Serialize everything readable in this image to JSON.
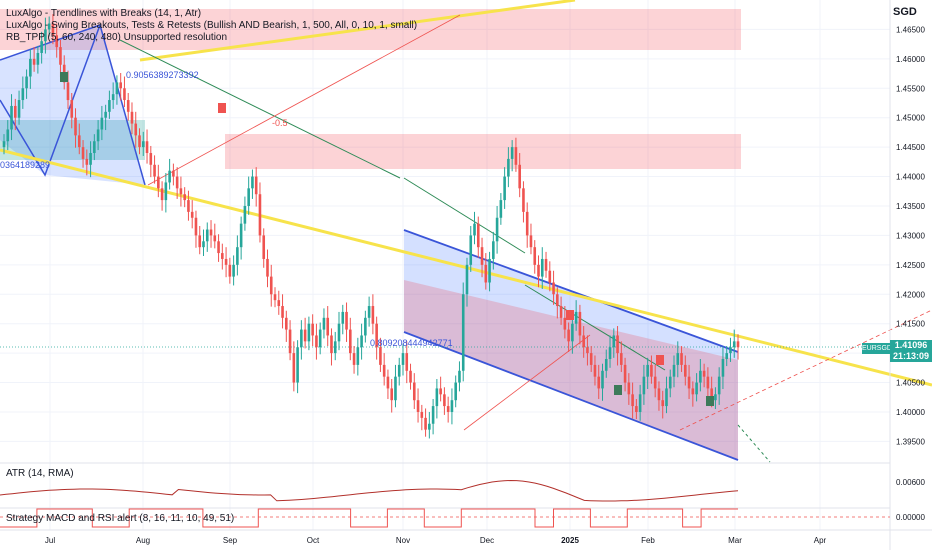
{
  "header": {
    "currency": "SGD",
    "indicator_lines": [
      "LuxAlgo - Trendlines with Breaks (14, 1, Atr)",
      "LuxAlgo - Swing Breakouts, Tests & Retests (Bullish AND Bearish, 1, 500, All, 0, 10, 1, small)",
      "RB_TPP (5, 60, 240, 480) Unsupported resolution"
    ]
  },
  "price_badge": {
    "symbol": "EURSGD",
    "price": "1.41096",
    "countdown": "21:13:09"
  },
  "panes": {
    "atr_label": "ATR (14, RMA)",
    "strategy_label": "Strategy MACD and RSI alert (8, 16, 11, 10, 49, 51)"
  },
  "annotations": {
    "fib_top": "0.9056389273392",
    "fib_left": "0364189289",
    "fib_mid": "0.809208444942771",
    "level_label": "-0.5"
  },
  "colors": {
    "up": "#26a69a",
    "down": "#ef5350",
    "yellow_trend": "#f7e34b",
    "channel_blue": "#3a55d8",
    "zone_red": "rgba(242,54,69,0.22)",
    "zone_green": "rgba(38,166,154,0.28)",
    "channel_fill_blue": "rgba(41,98,255,0.20)",
    "atr_line": "#b2302b",
    "strategy_line": "#ef5350"
  },
  "chart_data": {
    "type": "candlestick",
    "symbol": "EURSGD",
    "x_tick_labels": [
      "Jul",
      "Aug",
      "Sep",
      "Oct",
      "Nov",
      "Dec",
      "2025",
      "Feb",
      "Mar",
      "Apr"
    ],
    "y_tick_labels": [
      "1.46500",
      "1.46000",
      "1.45500",
      "1.45000",
      "1.44500",
      "1.44000",
      "1.43500",
      "1.43000",
      "1.42500",
      "1.42000",
      "1.41500",
      "1.41000",
      "1.40500",
      "1.40000",
      "1.39500"
    ],
    "ylim": [
      1.3915,
      1.47
    ],
    "close_series": [
      1.446,
      1.448,
      1.452,
      1.45,
      1.453,
      1.455,
      1.457,
      1.46,
      1.459,
      1.461,
      1.463,
      1.465,
      1.466,
      1.464,
      1.462,
      1.459,
      1.456,
      1.453,
      1.45,
      1.447,
      1.445,
      1.443,
      1.442,
      1.444,
      1.446,
      1.448,
      1.45,
      1.451,
      1.453,
      1.454,
      1.456,
      1.455,
      1.453,
      1.451,
      1.449,
      1.447,
      1.445,
      1.446,
      1.444,
      1.442,
      1.44,
      1.438,
      1.436,
      1.439,
      1.441,
      1.44,
      1.438,
      1.437,
      1.436,
      1.434,
      1.433,
      1.43,
      1.428,
      1.429,
      1.431,
      1.43,
      1.429,
      1.427,
      1.426,
      1.425,
      1.423,
      1.425,
      1.428,
      1.432,
      1.435,
      1.438,
      1.44,
      1.437,
      1.43,
      1.426,
      1.423,
      1.42,
      1.419,
      1.418,
      1.416,
      1.414,
      1.41,
      1.405,
      1.411,
      1.414,
      1.412,
      1.415,
      1.413,
      1.411,
      1.414,
      1.416,
      1.413,
      1.41,
      1.412,
      1.415,
      1.417,
      1.414,
      1.41,
      1.408,
      1.411,
      1.413,
      1.416,
      1.418,
      1.415,
      1.411,
      1.408,
      1.406,
      1.404,
      1.402,
      1.406,
      1.408,
      1.41,
      1.407,
      1.405,
      1.402,
      1.4,
      1.399,
      1.397,
      1.398,
      1.401,
      1.404,
      1.403,
      1.401,
      1.4,
      1.402,
      1.405,
      1.407,
      1.42,
      1.425,
      1.43,
      1.432,
      1.428,
      1.425,
      1.422,
      1.426,
      1.429,
      1.433,
      1.436,
      1.44,
      1.443,
      1.445,
      1.442,
      1.438,
      1.434,
      1.43,
      1.428,
      1.425,
      1.423,
      1.426,
      1.424,
      1.422,
      1.42,
      1.418,
      1.416,
      1.414,
      1.412,
      1.415,
      1.417,
      1.413,
      1.411,
      1.41,
      1.408,
      1.406,
      1.404,
      1.407,
      1.409,
      1.411,
      1.413,
      1.41,
      1.408,
      1.405,
      1.403,
      1.401,
      1.4,
      1.403,
      1.406,
      1.408,
      1.406,
      1.404,
      1.402,
      1.401,
      1.404,
      1.406,
      1.408,
      1.41,
      1.408,
      1.406,
      1.404,
      1.403,
      1.405,
      1.407,
      1.406,
      1.404,
      1.402,
      1.403,
      1.406,
      1.409,
      1.41,
      1.411,
      1.412,
      1.411
    ]
  }
}
